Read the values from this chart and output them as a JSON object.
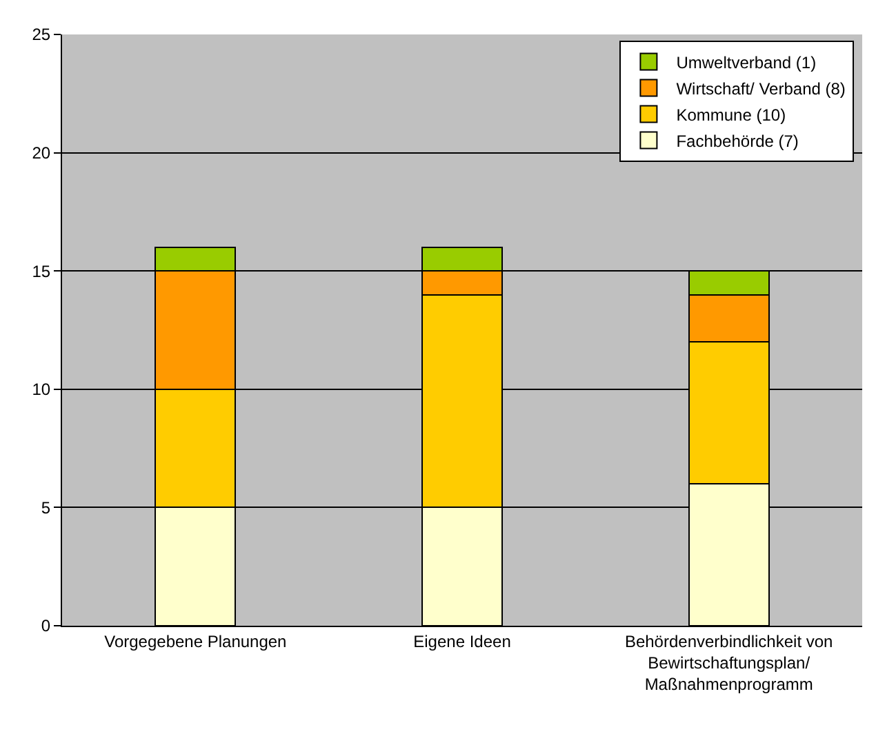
{
  "chart_data": {
    "type": "bar",
    "stacked": true,
    "categories": [
      "Vorgegebene Planungen",
      "Eigene Ideen",
      "Behördenverbindlichkeit von\nBewirtschaftungsplan/\nMaßnahmenprogramm"
    ],
    "series": [
      {
        "name": "Fachbehörde (7)",
        "color": "#ffffcc",
        "values": [
          5,
          5,
          6
        ]
      },
      {
        "name": "Kommune (10)",
        "color": "#ffcc00",
        "values": [
          5,
          9,
          6
        ]
      },
      {
        "name": "Wirtschaft/ Verband (8)",
        "color": "#ff9900",
        "values": [
          5,
          1,
          2
        ]
      },
      {
        "name": "Umweltverband (1)",
        "color": "#99cc00",
        "values": [
          1,
          1,
          1
        ]
      }
    ],
    "ylim": [
      0,
      25
    ],
    "yticks": [
      0,
      5,
      10,
      15,
      20,
      25
    ],
    "grid": "y",
    "legend": "top right"
  }
}
